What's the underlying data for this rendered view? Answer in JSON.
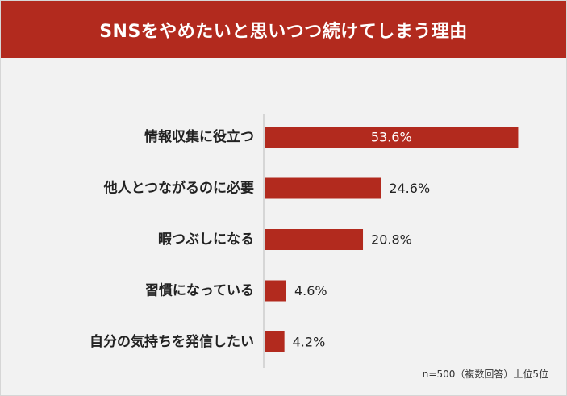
{
  "chart_data": {
    "type": "bar",
    "orientation": "horizontal",
    "title": "SNSをやめたいと思いつつ続けてしまう理由",
    "categories": [
      "情報収集に役立つ",
      "他人とつながるのに必要",
      "暇つぶしになる",
      "習慣になっている",
      "自分の気持ちを発信したい"
    ],
    "values": [
      53.6,
      24.6,
      20.8,
      4.6,
      4.2
    ],
    "value_labels": [
      "53.6%",
      "24.6%",
      "20.8%",
      "4.6%",
      "4.2%"
    ],
    "unit": "%",
    "xlim": [
      0,
      60
    ],
    "grid": false,
    "legend": "none",
    "bar_color": "#b22a1e",
    "note": "n=500（複数回答）上位5位"
  },
  "colors": {
    "header_bg": "#b22a1e",
    "background": "#f2f2f2",
    "bar": "#b22a1e",
    "axis": "#bbbbbb"
  }
}
